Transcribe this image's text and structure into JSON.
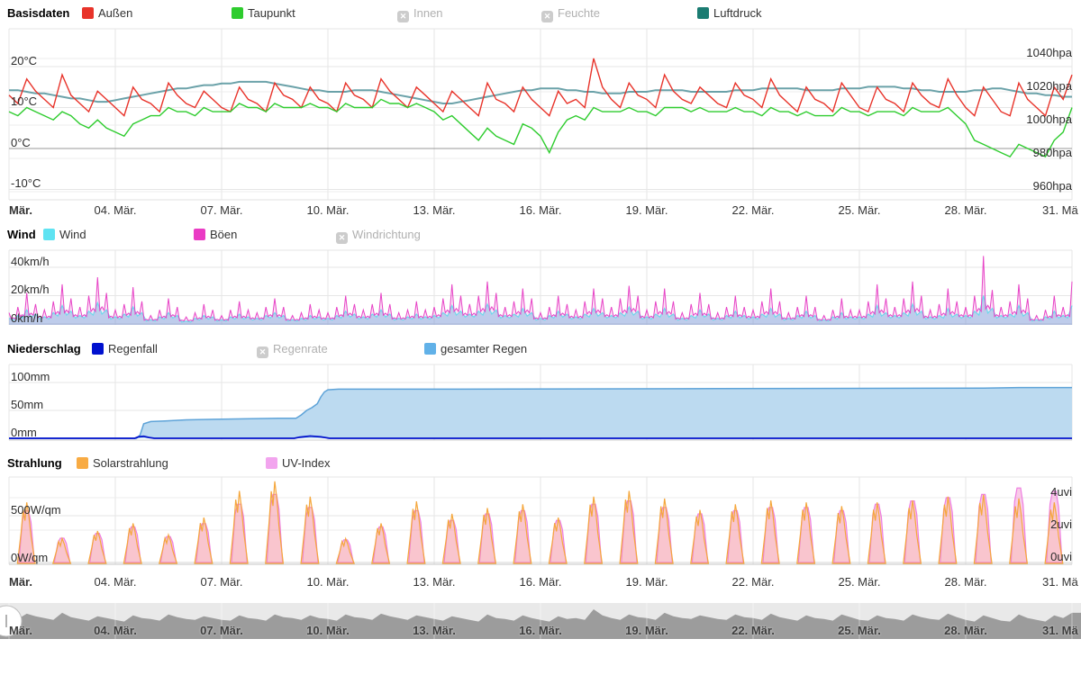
{
  "panels": [
    {
      "id": "basisdaten",
      "title": "Basisdaten",
      "legend": [
        {
          "label": "Außen",
          "color": "#e8332a",
          "enabled": true
        },
        {
          "label": "Taupunkt",
          "color": "#2ecc2e",
          "enabled": true
        },
        {
          "label": "Innen",
          "color": "#cccccc",
          "enabled": false
        },
        {
          "label": "Feuchte",
          "color": "#cccccc",
          "enabled": false
        },
        {
          "label": "Luftdruck",
          "color": "#1b7c72",
          "enabled": true
        }
      ]
    },
    {
      "id": "wind",
      "title": "Wind",
      "legend": [
        {
          "label": "Wind",
          "color": "#5fe3f2",
          "enabled": true
        },
        {
          "label": "Böen",
          "color": "#ea3bc4",
          "enabled": true
        },
        {
          "label": "Windrichtung",
          "color": "#cccccc",
          "enabled": false
        }
      ]
    },
    {
      "id": "niederschlag",
      "title": "Niederschlag",
      "legend": [
        {
          "label": "Regenfall",
          "color": "#0011cf",
          "enabled": true
        },
        {
          "label": "Regenrate",
          "color": "#cccccc",
          "enabled": false
        },
        {
          "label": "gesamter Regen",
          "color": "#61b1e8",
          "enabled": true
        }
      ]
    },
    {
      "id": "strahlung",
      "title": "Strahlung",
      "legend": [
        {
          "label": "Solarstrahlung",
          "color": "#f8ab43",
          "enabled": true
        },
        {
          "label": "UV-Index",
          "color": "#f2a4ee",
          "enabled": true
        }
      ]
    }
  ],
  "axes": {
    "temperature": [
      "20°C",
      "10°C",
      "0°C",
      "-10°C"
    ],
    "pressure": [
      "1040hpa",
      "1020hpa",
      "1000hpa",
      "980hpa",
      "960hpa"
    ],
    "wind": [
      "40km/h",
      "20km/h",
      "0km/h"
    ],
    "rain": [
      "100mm",
      "50mm",
      "0mm"
    ],
    "solar": [
      "500W/qm",
      "0W/qm"
    ],
    "uv": [
      "4uvi",
      "2uvi",
      "0uvi"
    ],
    "x_labels": [
      "Mär.",
      "04. Mär.",
      "07. Mär.",
      "10. Mär.",
      "13. Mär.",
      "16. Mär.",
      "19. Mär.",
      "22. Mär.",
      "25. Mär.",
      "28. Mär.",
      "31. Mä"
    ]
  },
  "chart_data": [
    {
      "id": "basisdaten",
      "type": "line",
      "title": "Basisdaten",
      "x_range_days": [
        0,
        30
      ],
      "x_tick_labels": [
        "Mär.",
        "04. Mär.",
        "07. Mär.",
        "10. Mär.",
        "13. Mär.",
        "16. Mär.",
        "19. Mär.",
        "22. Mär.",
        "25. Mär.",
        "28. Mär.",
        "31. Mä"
      ],
      "y_axis_left": {
        "unit": "°C",
        "ticks": [
          20,
          10,
          0,
          -10
        ]
      },
      "y_axis_right": {
        "unit": "hpa",
        "ticks": [
          1040,
          1020,
          1000,
          980,
          960
        ]
      },
      "series": [
        {
          "name": "Außen",
          "unit": "°C",
          "color": "#e8332a",
          "step_days": 0.25,
          "values": [
            13,
            11,
            17,
            14,
            12,
            10,
            18,
            13,
            11,
            9,
            14,
            12,
            10,
            8,
            15,
            12,
            11,
            9,
            16,
            13,
            11,
            10,
            14,
            12,
            10,
            9,
            15,
            12,
            11,
            9,
            16,
            13,
            12,
            10,
            15,
            12,
            11,
            9,
            16,
            13,
            12,
            10,
            17,
            14,
            12,
            10,
            15,
            13,
            11,
            9,
            14,
            12,
            10,
            8,
            16,
            12,
            11,
            9,
            15,
            12,
            10,
            8,
            14,
            11,
            12,
            10,
            22,
            15,
            12,
            10,
            16,
            13,
            12,
            10,
            18,
            14,
            12,
            11,
            15,
            13,
            11,
            10,
            16,
            13,
            12,
            10,
            17,
            13,
            11,
            9,
            15,
            12,
            11,
            9,
            16,
            13,
            10,
            9,
            15,
            12,
            11,
            9,
            16,
            13,
            11,
            10,
            17,
            13,
            10,
            8,
            15,
            12,
            9,
            8,
            16,
            12,
            10,
            8,
            15,
            12,
            18
          ]
        },
        {
          "name": "Taupunkt",
          "unit": "°C",
          "color": "#2ecc2e",
          "step_days": 0.25,
          "values": [
            9,
            8,
            10,
            9,
            8,
            7,
            9,
            8,
            6,
            5,
            7,
            5,
            4,
            3,
            6,
            7,
            8,
            8,
            10,
            9,
            9,
            8,
            10,
            9,
            9,
            9,
            11,
            10,
            10,
            9,
            11,
            10,
            10,
            10,
            11,
            10,
            10,
            9,
            11,
            10,
            10,
            10,
            12,
            11,
            11,
            10,
            11,
            10,
            9,
            7,
            8,
            6,
            4,
            2,
            5,
            3,
            2,
            1,
            6,
            5,
            3,
            -1,
            4,
            7,
            8,
            7,
            10,
            9,
            9,
            9,
            10,
            9,
            9,
            8,
            10,
            10,
            10,
            9,
            10,
            9,
            9,
            9,
            10,
            9,
            9,
            8,
            10,
            9,
            9,
            8,
            9,
            8,
            8,
            8,
            10,
            9,
            9,
            8,
            9,
            9,
            9,
            8,
            10,
            9,
            9,
            9,
            10,
            8,
            6,
            2,
            1,
            0,
            -1,
            -2,
            1,
            0,
            -1,
            -2,
            2,
            4,
            10
          ]
        },
        {
          "name": "Luftdruck",
          "unit": "hpa",
          "color": "#5b98a0",
          "step_days": 0.25,
          "values": [
            1021,
            1021,
            1020,
            1019,
            1019,
            1018,
            1017,
            1016,
            1016,
            1015,
            1014,
            1014,
            1015,
            1016,
            1017,
            1018,
            1019,
            1020,
            1021,
            1022,
            1022,
            1023,
            1024,
            1024,
            1025,
            1025,
            1026,
            1026,
            1026,
            1026,
            1025,
            1024,
            1023,
            1022,
            1021,
            1021,
            1020,
            1020,
            1020,
            1021,
            1021,
            1021,
            1020,
            1019,
            1018,
            1017,
            1016,
            1015,
            1014,
            1013,
            1013,
            1014,
            1015,
            1016,
            1017,
            1018,
            1019,
            1020,
            1021,
            1021,
            1022,
            1022,
            1022,
            1021,
            1021,
            1020,
            1020,
            1019,
            1019,
            1019,
            1020,
            1020,
            1020,
            1021,
            1021,
            1021,
            1021,
            1020,
            1020,
            1020,
            1020,
            1020,
            1021,
            1021,
            1021,
            1022,
            1022,
            1022,
            1022,
            1022,
            1021,
            1021,
            1021,
            1021,
            1022,
            1022,
            1022,
            1023,
            1023,
            1023,
            1023,
            1022,
            1022,
            1021,
            1021,
            1020,
            1020,
            1020,
            1020,
            1021,
            1021,
            1022,
            1022,
            1021,
            1020,
            1019,
            1019,
            1018,
            1018,
            1017,
            1017
          ]
        }
      ]
    },
    {
      "id": "wind",
      "type": "area",
      "y_axis_left": {
        "unit": "km/h",
        "ticks": [
          40,
          20,
          0
        ]
      },
      "series": [
        {
          "name": "Wind",
          "color": "#6fd8ec",
          "fill": "rgba(100,170,220,0.40)",
          "step_days": 0.25,
          "values": [
            4,
            6,
            10,
            7,
            5,
            8,
            13,
            9,
            6,
            9,
            15,
            10,
            5,
            7,
            12,
            8,
            3,
            5,
            8,
            6,
            2,
            4,
            6,
            5,
            3,
            5,
            7,
            5,
            4,
            6,
            8,
            6,
            3,
            4,
            6,
            5,
            4,
            6,
            9,
            7,
            5,
            7,
            10,
            7,
            4,
            5,
            7,
            5,
            6,
            8,
            13,
            9,
            7,
            9,
            14,
            10,
            6,
            7,
            11,
            8,
            4,
            6,
            9,
            7,
            5,
            7,
            11,
            8,
            6,
            8,
            12,
            9,
            5,
            7,
            11,
            7,
            4,
            6,
            10,
            7,
            4,
            6,
            9,
            6,
            5,
            7,
            11,
            7,
            4,
            6,
            9,
            6,
            3,
            5,
            8,
            5,
            5,
            7,
            13,
            8,
            6,
            8,
            14,
            9,
            5,
            6,
            11,
            7,
            6,
            9,
            20,
            11,
            6,
            7,
            13,
            8,
            3,
            5,
            9,
            6,
            13
          ]
        },
        {
          "name": "Böen",
          "color": "#e743c6",
          "fill": "rgba(232,80,200,0.16)",
          "step_days": 0.25,
          "values": [
            8,
            12,
            22,
            14,
            10,
            16,
            28,
            18,
            12,
            20,
            33,
            22,
            10,
            14,
            26,
            16,
            6,
            10,
            18,
            12,
            5,
            8,
            14,
            10,
            6,
            10,
            16,
            10,
            8,
            12,
            18,
            12,
            6,
            8,
            14,
            10,
            8,
            12,
            20,
            14,
            10,
            14,
            22,
            14,
            8,
            10,
            16,
            10,
            12,
            18,
            28,
            20,
            14,
            20,
            30,
            22,
            12,
            16,
            25,
            18,
            8,
            12,
            20,
            14,
            10,
            16,
            25,
            18,
            12,
            18,
            27,
            20,
            10,
            16,
            25,
            16,
            8,
            14,
            22,
            14,
            8,
            12,
            20,
            12,
            10,
            16,
            25,
            16,
            8,
            12,
            20,
            12,
            6,
            10,
            18,
            10,
            10,
            16,
            28,
            18,
            12,
            18,
            30,
            20,
            10,
            14,
            25,
            16,
            12,
            20,
            48,
            24,
            12,
            16,
            28,
            18,
            6,
            10,
            20,
            12,
            30
          ]
        }
      ]
    },
    {
      "id": "niederschlag",
      "type": "area",
      "y_axis_left": {
        "unit": "mm",
        "ticks": [
          100,
          50,
          0
        ]
      },
      "series": [
        {
          "name": "Regenfall",
          "color": "#0011cc",
          "points": [
            [
              0,
              0
            ],
            [
              3.55,
              0
            ],
            [
              3.65,
              2.5
            ],
            [
              3.8,
              3.5
            ],
            [
              3.95,
              1.5
            ],
            [
              4.1,
              0
            ],
            [
              8.05,
              0
            ],
            [
              8.2,
              2
            ],
            [
              8.5,
              4
            ],
            [
              8.8,
              2.5
            ],
            [
              9.05,
              0
            ],
            [
              30,
              0
            ]
          ]
        },
        {
          "name": "gesamter Regen",
          "color": "#5ea3d8",
          "fill": "#bcdaf0",
          "points": [
            [
              0,
              0
            ],
            [
              3.6,
              0
            ],
            [
              3.7,
              6
            ],
            [
              3.8,
              26
            ],
            [
              4.0,
              30
            ],
            [
              4.4,
              31
            ],
            [
              5,
              33
            ],
            [
              5.8,
              34
            ],
            [
              6.8,
              35
            ],
            [
              7.6,
              36
            ],
            [
              8.1,
              36
            ],
            [
              8.25,
              42
            ],
            [
              8.4,
              50
            ],
            [
              8.55,
              55
            ],
            [
              8.7,
              62
            ],
            [
              8.8,
              74
            ],
            [
              8.9,
              83
            ],
            [
              9.0,
              87
            ],
            [
              9.3,
              88
            ],
            [
              12,
              88
            ],
            [
              16,
              88.5
            ],
            [
              20,
              89
            ],
            [
              24,
              89.5
            ],
            [
              27.5,
              90
            ],
            [
              28.5,
              91
            ],
            [
              30,
              91
            ]
          ]
        }
      ]
    },
    {
      "id": "strahlung",
      "type": "area-spikes",
      "y_axis_left": {
        "unit": "W/qm",
        "ticks": [
          500,
          0
        ]
      },
      "y_axis_right": {
        "unit": "uvi",
        "ticks": [
          4,
          2,
          0
        ]
      },
      "series": [
        {
          "name": "Solarstrahlung",
          "unit": "W/qm",
          "color": "#f5a73c",
          "fill": "rgba(246,168,62,0.15)",
          "daily_peaks": [
            640,
            260,
            340,
            420,
            300,
            480,
            760,
            860,
            700,
            260,
            420,
            650,
            520,
            580,
            620,
            480,
            700,
            760,
            680,
            560,
            620,
            660,
            640,
            600,
            640,
            660,
            700,
            720,
            680,
            640
          ]
        },
        {
          "name": "UV-Index",
          "unit": "uvi",
          "color": "#ee7ee0",
          "fill": "rgba(240,130,200,0.42)",
          "daily_peaks": [
            3.2,
            1.5,
            1.8,
            2.2,
            1.6,
            2.4,
            3.6,
            4.2,
            3.4,
            1.4,
            2.2,
            3.2,
            2.6,
            3.0,
            3.2,
            2.6,
            3.6,
            3.8,
            3.4,
            3.0,
            3.2,
            3.4,
            3.4,
            3.2,
            3.6,
            3.8,
            4.0,
            4.2,
            4.6,
            4.4
          ]
        }
      ]
    }
  ],
  "navigator": {
    "source_series": "Außen",
    "bg_color": "#e9e9e9",
    "area_color": "#9c9c9c"
  }
}
